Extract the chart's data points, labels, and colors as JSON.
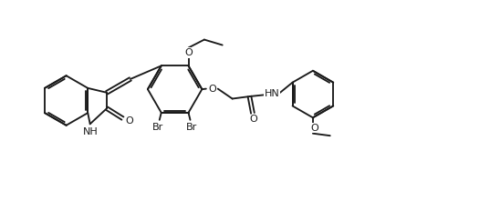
{
  "bg_color": "#ffffff",
  "line_color": "#1a1a1a",
  "line_width": 1.35,
  "font_size": 8.0,
  "fig_width": 5.37,
  "fig_height": 2.21,
  "dpi": 100,
  "xlim": [
    -0.3,
    10.5
  ],
  "ylim": [
    0.0,
    4.0
  ]
}
